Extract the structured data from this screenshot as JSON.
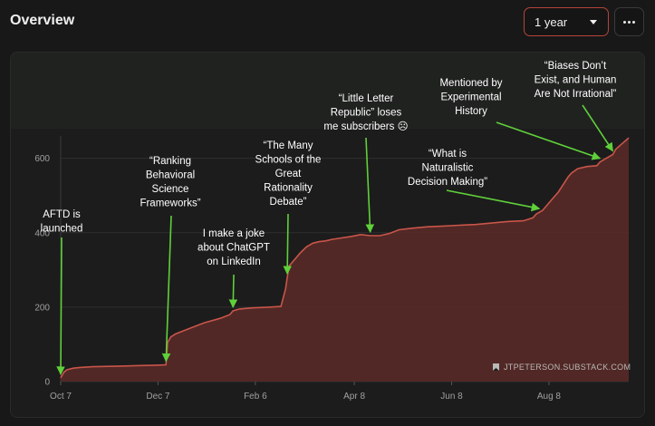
{
  "header": {
    "title": "Overview",
    "range_value": "1 year"
  },
  "watermark": "JTPETERSON.SUBSTACK.COM",
  "chart_data": {
    "type": "area",
    "y_ticks": [
      0,
      200,
      400,
      600
    ],
    "ylim": [
      0,
      660
    ],
    "x_ticks": [
      {
        "label": "Oct 7",
        "day": 0
      },
      {
        "label": "Dec 7",
        "day": 61
      },
      {
        "label": "Feb 6",
        "day": 122
      },
      {
        "label": "Apr 8",
        "day": 184
      },
      {
        "label": "Jun 8",
        "day": 245
      },
      {
        "label": "Aug 8",
        "day": 306
      }
    ],
    "xlim": [
      0,
      356
    ],
    "series": [
      {
        "x": [
          0,
          2,
          4,
          8,
          12,
          20,
          30,
          40,
          50,
          60,
          66,
          67,
          69,
          72,
          76,
          82,
          90,
          100,
          106,
          108,
          112,
          120,
          130,
          138,
          141,
          143,
          146,
          150,
          154,
          158,
          162,
          166,
          170,
          176,
          182,
          188,
          194,
          200,
          206,
          212,
          220,
          230,
          240,
          250,
          260,
          270,
          280,
          290,
          296,
          298,
          302,
          306,
          312,
          318,
          320,
          324,
          330,
          336,
          338,
          342,
          346,
          348,
          352,
          356
        ],
        "y": [
          10,
          25,
          32,
          36,
          38,
          40,
          41,
          42,
          43,
          44,
          45,
          105,
          120,
          128,
          135,
          145,
          158,
          170,
          180,
          190,
          195,
          198,
          200,
          202,
          250,
          310,
          325,
          345,
          362,
          372,
          376,
          378,
          382,
          386,
          390,
          395,
          392,
          392,
          398,
          408,
          412,
          416,
          418,
          420,
          422,
          426,
          430,
          432,
          440,
          450,
          460,
          480,
          510,
          550,
          560,
          572,
          578,
          580,
          590,
          600,
          610,
          625,
          640,
          655
        ]
      }
    ]
  },
  "annotations": [
    {
      "id": "aftd-launched",
      "lines": [
        "AFTD is",
        "launched"
      ],
      "day": 0
    },
    {
      "id": "ranking-behavioral",
      "lines": [
        "“Ranking",
        "Behavioral",
        "Science",
        "Frameworks”"
      ],
      "day": 66
    },
    {
      "id": "chatgpt-joke",
      "lines": [
        "I make a joke",
        "about ChatGPT",
        "on LinkedIn"
      ],
      "day": 108
    },
    {
      "id": "many-schools",
      "lines": [
        "“The Many",
        "Schools of the",
        "Great",
        "Rationality",
        "Debate”"
      ],
      "day": 142
    },
    {
      "id": "little-letter",
      "lines": [
        "“Little Letter",
        "Republic” loses",
        "me subscribers ☹"
      ],
      "day": 194
    },
    {
      "id": "naturalistic",
      "lines": [
        "“What is",
        "Naturalistic",
        "Decision Making”"
      ],
      "day": 300
    },
    {
      "id": "experimental-history",
      "lines": [
        "Mentioned by",
        "Experimental",
        "History"
      ],
      "day": 338
    },
    {
      "id": "biases",
      "lines": [
        "“Biases Don’t",
        "Exist, and Human",
        "Are Not Irrational”"
      ],
      "day": 346
    }
  ]
}
